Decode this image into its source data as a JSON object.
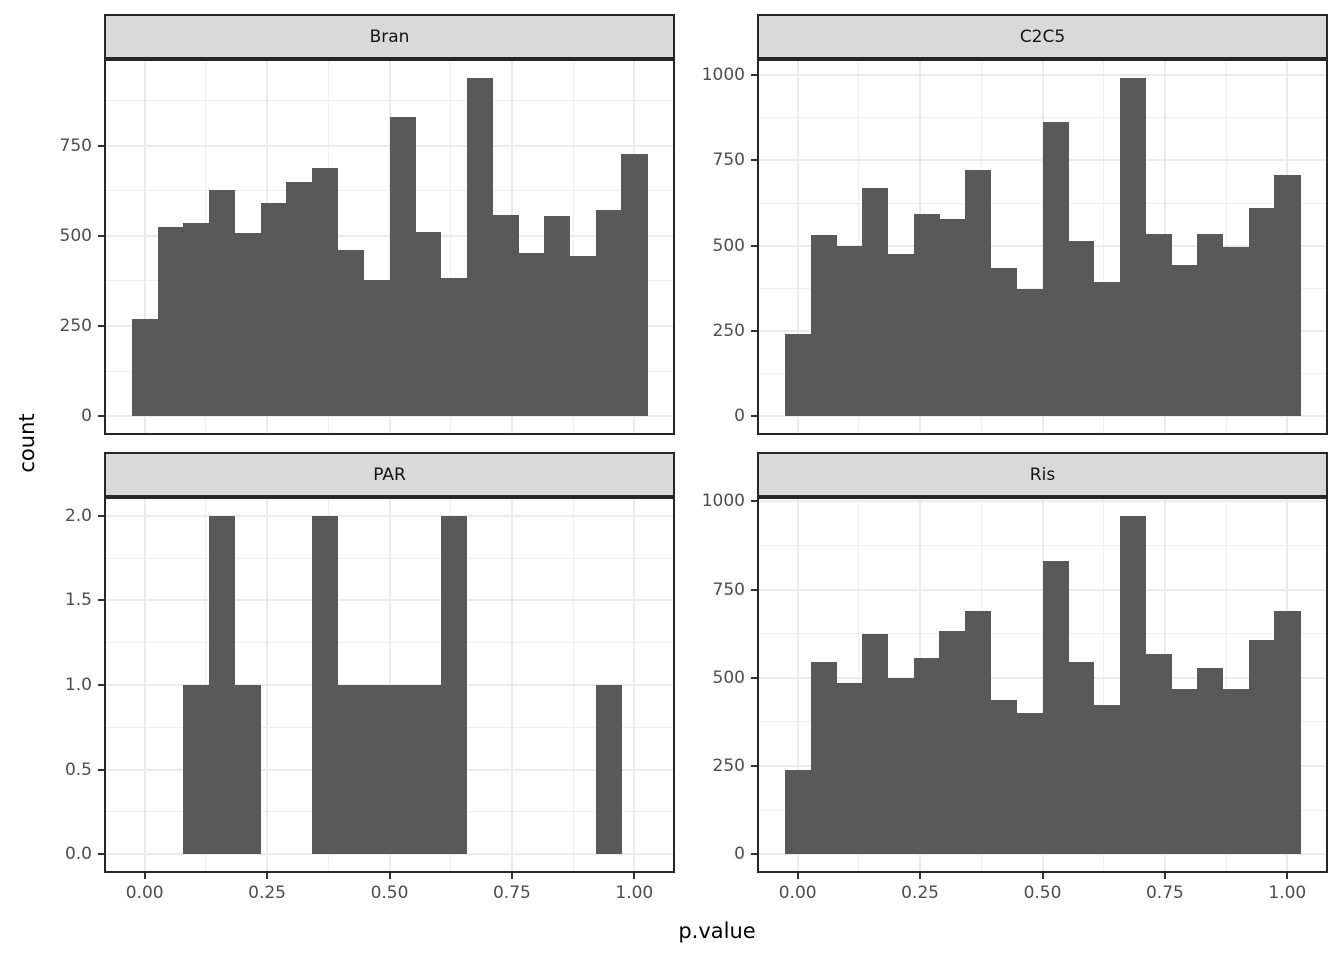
{
  "chart_data": {
    "type": "bar",
    "subtype": "faceted-histogram",
    "title": "",
    "xlabel": "p.value",
    "ylabel": "count",
    "grid": "on",
    "legend": "none",
    "bar_color": "#595959",
    "strip_background": "#d9d9d9",
    "panel_border_color": "#262626",
    "gridline_color": "#ebebeb",
    "axis_text_color": "#4d4d4d",
    "x": {
      "bins": 20,
      "bin_width": 0.0526316,
      "first_bin_center": 0.0,
      "last_bin_center": 1.0,
      "ticks": [
        0.0,
        0.25,
        0.5,
        0.75,
        1.0
      ],
      "tick_labels": [
        "0.00",
        "0.25",
        "0.50",
        "0.75",
        "1.00"
      ],
      "minor_ticks": [
        0.125,
        0.375,
        0.625,
        0.875
      ]
    },
    "facets": [
      {
        "label": "Bran",
        "y_step": 250,
        "y_ticks": [
          [
            0,
            "0"
          ],
          [
            250,
            "250"
          ],
          [
            500,
            "500"
          ],
          [
            750,
            "750"
          ]
        ],
        "values": [
          270,
          525,
          536,
          627,
          508,
          590,
          650,
          689,
          462,
          378,
          830,
          510,
          383,
          938,
          559,
          453,
          556,
          444,
          571,
          726
        ]
      },
      {
        "label": "C2C5",
        "y_step": 250,
        "y_ticks": [
          [
            0,
            "0"
          ],
          [
            250,
            "250"
          ],
          [
            500,
            "500"
          ],
          [
            750,
            "750"
          ],
          [
            1000,
            "1000"
          ]
        ],
        "values": [
          240,
          530,
          500,
          670,
          475,
          593,
          578,
          721,
          435,
          373,
          862,
          514,
          394,
          992,
          535,
          443,
          535,
          496,
          610,
          707
        ]
      },
      {
        "label": "PAR",
        "y_step": 0.5,
        "y_ticks": [
          [
            0,
            "0.0"
          ],
          [
            0.5,
            "0.5"
          ],
          [
            1,
            "1.0"
          ],
          [
            1.5,
            "1.5"
          ],
          [
            2,
            "2.0"
          ]
        ],
        "values": [
          0,
          0,
          1,
          2,
          1,
          0,
          0,
          2,
          1,
          1,
          1,
          1,
          2,
          0,
          0,
          0,
          0,
          0,
          1,
          0
        ]
      },
      {
        "label": "Ris",
        "y_step": 250,
        "y_ticks": [
          [
            0,
            "0"
          ],
          [
            250,
            "250"
          ],
          [
            500,
            "500"
          ],
          [
            750,
            "750"
          ],
          [
            1000,
            "1000"
          ]
        ],
        "values": [
          239,
          544,
          485,
          625,
          500,
          557,
          633,
          690,
          436,
          399,
          831,
          546,
          424,
          959,
          567,
          468,
          527,
          469,
          607,
          690
        ]
      }
    ]
  }
}
